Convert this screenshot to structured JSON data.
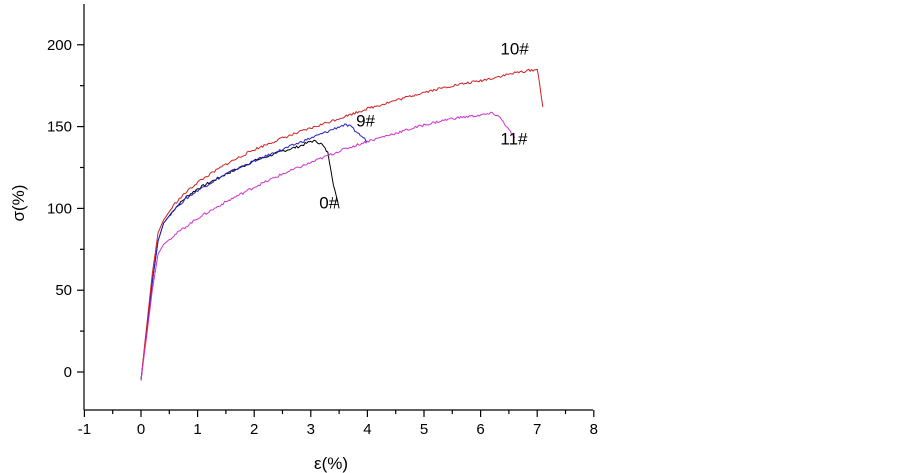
{
  "chart_data": {
    "type": "line",
    "xlabel": "ε(%)",
    "ylabel": "σ(%)",
    "xlim": [
      -1,
      8
    ],
    "ylim": [
      -23,
      225
    ],
    "xticks": [
      -1,
      0,
      1,
      2,
      3,
      4,
      5,
      6,
      7,
      8
    ],
    "yticks": [
      0,
      50,
      100,
      150,
      200
    ],
    "grid": false,
    "legend": "none",
    "series": [
      {
        "name": "0#",
        "color": "#000000",
        "x": [
          0,
          0.1,
          0.2,
          0.3,
          0.4,
          0.6,
          0.8,
          1.0,
          1.5,
          2.0,
          2.5,
          2.8,
          3.0,
          3.1,
          3.2,
          3.3,
          3.35,
          3.4,
          3.45,
          3.5
        ],
        "y": [
          -5,
          25,
          55,
          80,
          91,
          100,
          107,
          112,
          121,
          129,
          135,
          138,
          141,
          141,
          139,
          134,
          125,
          115,
          107,
          100
        ]
      },
      {
        "name": "9#",
        "color": "#2222cc",
        "x": [
          0,
          0.1,
          0.2,
          0.3,
          0.4,
          0.6,
          0.8,
          1.0,
          1.5,
          2.0,
          2.5,
          3.0,
          3.3,
          3.5,
          3.6,
          3.7,
          3.8,
          3.9,
          4.0
        ],
        "y": [
          -5,
          25,
          55,
          80,
          91,
          100,
          106,
          111,
          121,
          129,
          136,
          143,
          147,
          150,
          151,
          150,
          147,
          144,
          141
        ]
      },
      {
        "name": "10#",
        "color": "#cc2222",
        "x": [
          0,
          0.1,
          0.2,
          0.3,
          0.4,
          0.6,
          0.8,
          1.0,
          1.5,
          2.0,
          2.5,
          3.0,
          3.5,
          4.0,
          4.5,
          5.0,
          5.5,
          6.0,
          6.5,
          6.8,
          7.0,
          7.05,
          7.1
        ],
        "y": [
          -5,
          28,
          60,
          85,
          93,
          103,
          110,
          116,
          127,
          136,
          143,
          149,
          155,
          161,
          166,
          171,
          175,
          178,
          182,
          184,
          185,
          175,
          162
        ]
      },
      {
        "name": "11#",
        "color": "#cc33cc",
        "x": [
          0,
          0.1,
          0.2,
          0.3,
          0.4,
          0.6,
          0.8,
          1.0,
          1.5,
          2.0,
          2.5,
          3.0,
          3.5,
          4.0,
          4.5,
          5.0,
          5.5,
          6.0,
          6.2,
          6.3,
          6.4,
          6.5,
          6.6
        ],
        "y": [
          -5,
          22,
          50,
          72,
          78,
          84,
          89,
          94,
          104,
          113,
          121,
          128,
          135,
          141,
          146,
          151,
          155,
          157,
          158,
          157,
          153,
          148,
          143
        ]
      }
    ],
    "annotations": [
      {
        "text": "0#",
        "x": 3.15,
        "y": 100
      },
      {
        "text": "9#",
        "x": 3.8,
        "y": 150
      },
      {
        "text": "10#",
        "x": 6.35,
        "y": 194
      },
      {
        "text": "11#",
        "x": 6.35,
        "y": 139
      }
    ]
  }
}
